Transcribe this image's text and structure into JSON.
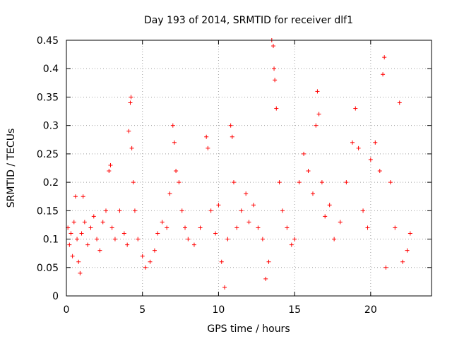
{
  "chart_data": {
    "type": "scatter",
    "title": "Day 193 of 2014, SRMTID for receiver dlf1",
    "xlabel": "GPS time / hours",
    "ylabel": "SRMTID / TECUs",
    "xlim": [
      0,
      24
    ],
    "ylim": [
      0,
      0.45
    ],
    "x_ticks": [
      0,
      5,
      10,
      15,
      20
    ],
    "x_tick_labels": [
      "0",
      "5",
      "10",
      "15",
      "20"
    ],
    "y_ticks": [
      0,
      0.05,
      0.1,
      0.15,
      0.2,
      0.25,
      0.3,
      0.35,
      0.4,
      0.45
    ],
    "y_tick_labels": [
      "0",
      "0.05",
      "0.1",
      "0.15",
      "0.2",
      "0.25",
      "0.3",
      "0.35",
      "0.4",
      "0.45"
    ],
    "grid": true,
    "marker": "+",
    "marker_color": "#ff0000",
    "x_data_extent": [
      0,
      22.6
    ],
    "series": [
      {
        "name": "SRMTID",
        "points": [
          [
            0.1,
            0.12
          ],
          [
            0.2,
            0.09
          ],
          [
            0.3,
            0.11
          ],
          [
            0.4,
            0.07
          ],
          [
            0.5,
            0.13
          ],
          [
            0.6,
            0.175
          ],
          [
            0.7,
            0.1
          ],
          [
            0.8,
            0.06
          ],
          [
            0.9,
            0.04
          ],
          [
            1.0,
            0.11
          ],
          [
            1.1,
            0.175
          ],
          [
            1.2,
            0.13
          ],
          [
            1.4,
            0.09
          ],
          [
            1.6,
            0.12
          ],
          [
            1.8,
            0.14
          ],
          [
            2.0,
            0.1
          ],
          [
            2.2,
            0.08
          ],
          [
            2.4,
            0.13
          ],
          [
            2.6,
            0.15
          ],
          [
            2.8,
            0.22
          ],
          [
            2.9,
            0.23
          ],
          [
            3.0,
            0.12
          ],
          [
            3.2,
            0.1
          ],
          [
            3.5,
            0.15
          ],
          [
            3.8,
            0.11
          ],
          [
            4.0,
            0.09
          ],
          [
            4.1,
            0.29
          ],
          [
            4.2,
            0.34
          ],
          [
            4.25,
            0.35
          ],
          [
            4.3,
            0.26
          ],
          [
            4.4,
            0.2
          ],
          [
            4.5,
            0.15
          ],
          [
            4.7,
            0.1
          ],
          [
            5.0,
            0.07
          ],
          [
            5.2,
            0.05
          ],
          [
            5.5,
            0.06
          ],
          [
            5.8,
            0.08
          ],
          [
            6.0,
            0.11
          ],
          [
            6.3,
            0.13
          ],
          [
            6.6,
            0.12
          ],
          [
            6.8,
            0.18
          ],
          [
            7.0,
            0.3
          ],
          [
            7.1,
            0.27
          ],
          [
            7.2,
            0.22
          ],
          [
            7.4,
            0.2
          ],
          [
            7.6,
            0.15
          ],
          [
            7.8,
            0.12
          ],
          [
            8.0,
            0.1
          ],
          [
            8.4,
            0.09
          ],
          [
            8.8,
            0.12
          ],
          [
            9.2,
            0.28
          ],
          [
            9.3,
            0.26
          ],
          [
            9.5,
            0.15
          ],
          [
            9.8,
            0.11
          ],
          [
            10.0,
            0.16
          ],
          [
            10.2,
            0.06
          ],
          [
            10.4,
            0.015
          ],
          [
            10.6,
            0.1
          ],
          [
            10.8,
            0.3
          ],
          [
            10.9,
            0.28
          ],
          [
            11.0,
            0.2
          ],
          [
            11.2,
            0.12
          ],
          [
            11.5,
            0.15
          ],
          [
            11.8,
            0.18
          ],
          [
            12.0,
            0.13
          ],
          [
            12.3,
            0.16
          ],
          [
            12.6,
            0.12
          ],
          [
            12.9,
            0.1
          ],
          [
            13.1,
            0.03
          ],
          [
            13.3,
            0.06
          ],
          [
            13.5,
            0.45
          ],
          [
            13.6,
            0.44
          ],
          [
            13.65,
            0.4
          ],
          [
            13.7,
            0.38
          ],
          [
            13.8,
            0.33
          ],
          [
            14.0,
            0.2
          ],
          [
            14.2,
            0.15
          ],
          [
            14.5,
            0.12
          ],
          [
            14.8,
            0.09
          ],
          [
            15.0,
            0.1
          ],
          [
            15.3,
            0.2
          ],
          [
            15.6,
            0.25
          ],
          [
            15.9,
            0.22
          ],
          [
            16.2,
            0.18
          ],
          [
            16.4,
            0.3
          ],
          [
            16.5,
            0.36
          ],
          [
            16.6,
            0.32
          ],
          [
            16.8,
            0.2
          ],
          [
            17.0,
            0.14
          ],
          [
            17.3,
            0.16
          ],
          [
            17.6,
            0.1
          ],
          [
            18.0,
            0.13
          ],
          [
            18.4,
            0.2
          ],
          [
            18.8,
            0.27
          ],
          [
            19.0,
            0.33
          ],
          [
            19.2,
            0.26
          ],
          [
            19.5,
            0.15
          ],
          [
            19.8,
            0.12
          ],
          [
            20.0,
            0.24
          ],
          [
            20.3,
            0.27
          ],
          [
            20.6,
            0.22
          ],
          [
            20.8,
            0.39
          ],
          [
            20.9,
            0.42
          ],
          [
            21.0,
            0.05
          ],
          [
            21.3,
            0.2
          ],
          [
            21.6,
            0.12
          ],
          [
            21.9,
            0.34
          ],
          [
            22.1,
            0.06
          ],
          [
            22.4,
            0.08
          ],
          [
            22.6,
            0.11
          ]
        ]
      }
    ]
  }
}
